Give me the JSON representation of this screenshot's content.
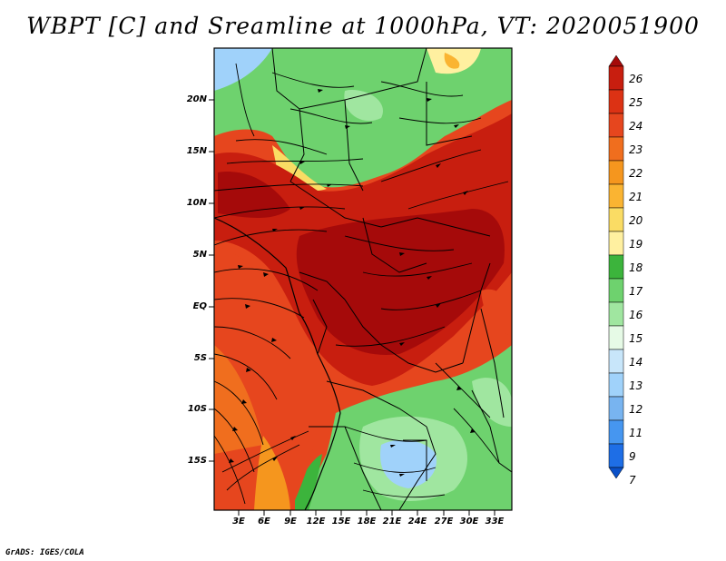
{
  "title": "WBPT [C] and Sreamline at 1000hPa, VT: 2020051900",
  "footer": "GrADS: IGES/COLA",
  "lat_labels": [
    "20N",
    "15N",
    "10N",
    "5N",
    "EQ",
    "5S",
    "10S",
    "15S"
  ],
  "lon_labels": [
    "3E",
    "6E",
    "9E",
    "12E",
    "15E",
    "18E",
    "21E",
    "24E",
    "27E",
    "30E",
    "33E"
  ],
  "colorbar": {
    "labels": [
      "26",
      "25",
      "24",
      "23",
      "22",
      "21",
      "20",
      "19",
      "18",
      "17",
      "16",
      "15",
      "14",
      "13",
      "12",
      "11",
      "9",
      "7"
    ],
    "colors": [
      "#a50a0a",
      "#c81e0f",
      "#dc3214",
      "#e6461e",
      "#f06e1e",
      "#f5961e",
      "#fab432",
      "#fadc64",
      "#fff0a0",
      "#3cb43c",
      "#6ed26e",
      "#a0e6a0",
      "#e6fae6",
      "#c8e6fa",
      "#a0d2fa",
      "#78b4f0",
      "#4696f0",
      "#1e6ee6",
      "#0a50c8"
    ]
  },
  "colors": {
    "hot_dark": "#a50a0a",
    "hot": "#c81e0f",
    "warm": "#e6461e",
    "orange": "#f5961e",
    "green": "#6ed26e",
    "green_dark": "#3cb43c",
    "blue": "#a0d2fa"
  }
}
